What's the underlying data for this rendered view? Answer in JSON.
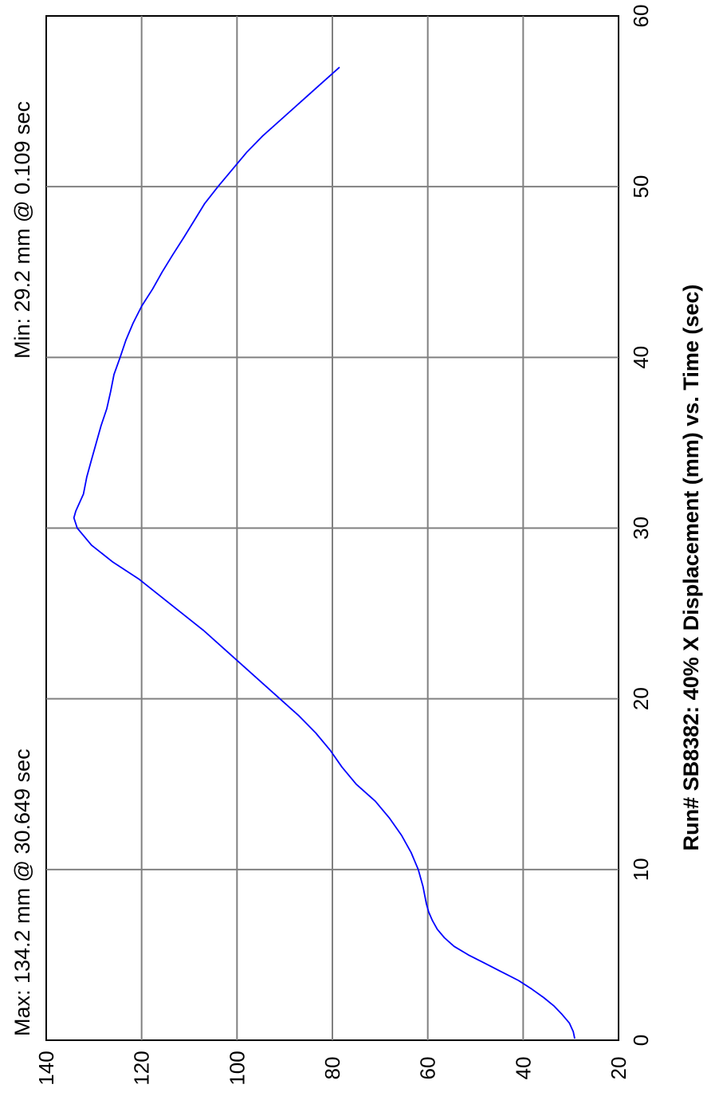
{
  "chart_data": {
    "type": "line",
    "orientation": "rotated-90-ccw",
    "title": "Run# SB8382:  40%  X Displacement (mm) vs. Time (sec)",
    "xlabel": "",
    "ylabel": "",
    "xlim": [
      0,
      60
    ],
    "ylim": [
      20,
      140
    ],
    "x_ticks": [
      "0",
      "10",
      "20",
      "30",
      "40",
      "50",
      "60"
    ],
    "y_ticks": [
      "20",
      "40",
      "60",
      "80",
      "100",
      "120",
      "140"
    ],
    "grid": true,
    "annotations": {
      "max": "Max: 134.2 mm @ 30.649 sec",
      "min": "Min: 29.2 mm @ 0.109 sec"
    },
    "series": [
      {
        "color": "#0000ff",
        "x": [
          0.1,
          0.5,
          1,
          1.5,
          2,
          2.5,
          3,
          3.5,
          4,
          4.5,
          5,
          5.5,
          6,
          6.5,
          7,
          7.5,
          8,
          9,
          10,
          11,
          12,
          13,
          14,
          15,
          16,
          17,
          18,
          19,
          20,
          21,
          22,
          23,
          24,
          25,
          26,
          27,
          28,
          29,
          30,
          30.6,
          31,
          32,
          33,
          34,
          35,
          36,
          37,
          38,
          39,
          40,
          41,
          42,
          43,
          44,
          45,
          46,
          47,
          48,
          49,
          50,
          51,
          52,
          53,
          54,
          55,
          56,
          57
        ],
        "y": [
          29.2,
          29.5,
          30.3,
          31.8,
          33.5,
          35.7,
          38.2,
          41,
          44.5,
          48,
          51.5,
          54.5,
          56.5,
          58,
          59,
          59.8,
          60.3,
          61,
          62,
          63.5,
          65.5,
          68,
          71,
          75,
          78,
          80.5,
          83.5,
          87,
          91,
          95,
          99,
          103,
          107,
          111.5,
          116,
          120.5,
          126,
          130.5,
          133.5,
          134.2,
          133.8,
          132.2,
          131.5,
          130.5,
          129.5,
          128.5,
          127.3,
          126.5,
          125.8,
          124.5,
          123.3,
          121.8,
          120,
          117.7,
          115.7,
          113.5,
          111.2,
          109,
          106.8,
          104,
          101,
          98,
          94.5,
          90.5,
          86.5,
          82.5,
          78.5
        ]
      }
    ]
  }
}
